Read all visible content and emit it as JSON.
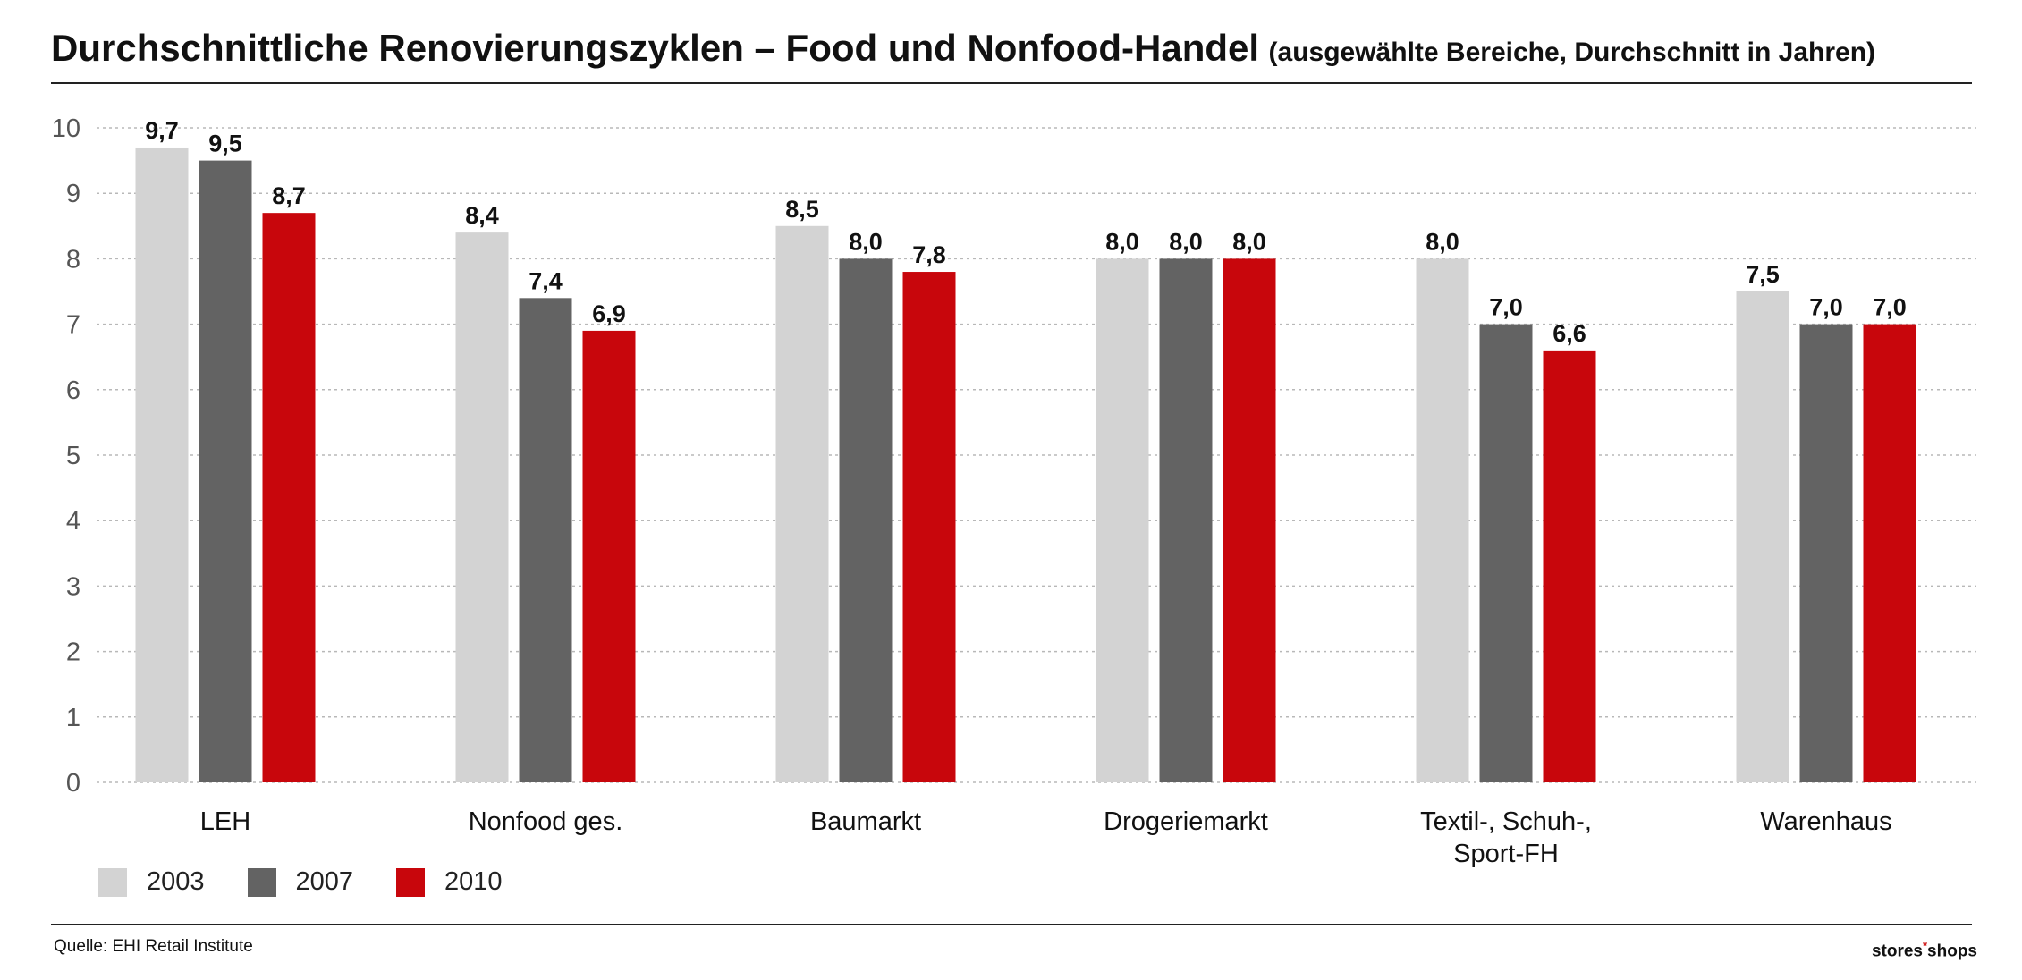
{
  "header": {
    "title": "Durchschnittliche Renovierungszyklen – Food und Nonfood-Handel",
    "subtitle": "(ausgewählte Bereiche, Durchschnitt in Jahren)"
  },
  "footer": {
    "source": "Quelle: EHI Retail Institute",
    "logo_left": "stores",
    "logo_star": "*",
    "logo_right": "shops"
  },
  "colors": {
    "series_2003": "#d3d3d3",
    "series_2007": "#636363",
    "series_2010": "#c8060c",
    "grid": "#b8b8b8"
  },
  "chart_data": {
    "type": "bar",
    "title": "Durchschnittliche Renovierungszyklen – Food und Nonfood-Handel",
    "subtitle": "(ausgewählte Bereiche, Durchschnitt in Jahren)",
    "xlabel": "",
    "ylabel": "",
    "ylim": [
      0,
      10
    ],
    "yticks": [
      "0",
      "1",
      "2",
      "3",
      "4",
      "5",
      "6",
      "7",
      "8",
      "9",
      "10"
    ],
    "grid": true,
    "legend_position": "bottom-left",
    "categories": [
      [
        "LEH"
      ],
      [
        "Nonfood ges."
      ],
      [
        "Baumarkt"
      ],
      [
        "Drogeriemarkt"
      ],
      [
        "Textil-, Schuh-,",
        "Sport-FH"
      ],
      [
        "Warenhaus"
      ]
    ],
    "series": [
      {
        "name": "2003",
        "color": "#d3d3d3",
        "values": [
          9.7,
          8.4,
          8.5,
          8.0,
          8.0,
          7.5
        ],
        "labels": [
          "9,7",
          "8,4",
          "8,5",
          "8,0",
          "8,0",
          "7,5"
        ]
      },
      {
        "name": "2007",
        "color": "#636363",
        "values": [
          9.5,
          7.4,
          8.0,
          8.0,
          7.0,
          7.0
        ],
        "labels": [
          "9,5",
          "7,4",
          "8,0",
          "8,0",
          "7,0",
          "7,0"
        ]
      },
      {
        "name": "2010",
        "color": "#c8060c",
        "values": [
          8.7,
          6.9,
          7.8,
          8.0,
          6.6,
          7.0
        ],
        "labels": [
          "8,7",
          "6,9",
          "7,8",
          "8,0",
          "6,6",
          "7,0"
        ]
      }
    ]
  }
}
